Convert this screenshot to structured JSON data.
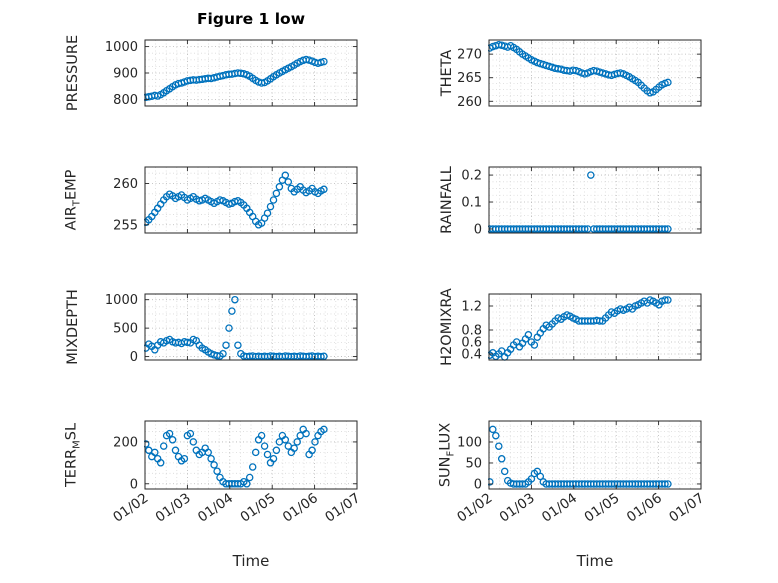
{
  "title": "Figure 1 low",
  "xlabel": "Time",
  "colors": {
    "marker": "#0072BD",
    "axis": "#262626",
    "grid_major": "#b5b5b5",
    "grid_minor": "#d9d9d9",
    "background": "#ffffff"
  },
  "x_axis": {
    "ticks": [
      2,
      3,
      4,
      5,
      6,
      7
    ],
    "tick_labels": [
      "01/02",
      "01/03",
      "01/04",
      "01/05",
      "01/06",
      "01/07"
    ],
    "lim": [
      2,
      7
    ]
  },
  "chart_data": [
    {
      "type": "scatter",
      "ylabel": "PRESSURE",
      "row": 0,
      "col": 0,
      "yticks": [
        800,
        900,
        1000
      ],
      "ylim": [
        775,
        1025
      ],
      "x_start": 2.02,
      "x_step": 0.07,
      "y": [
        808,
        810,
        812,
        815,
        813,
        818,
        825,
        833,
        840,
        848,
        855,
        860,
        862,
        866,
        870,
        872,
        874,
        873,
        875,
        876,
        878,
        880,
        879,
        882,
        885,
        888,
        890,
        893,
        895,
        896,
        898,
        900,
        899,
        897,
        893,
        888,
        880,
        872,
        866,
        862,
        864,
        870,
        878,
        886,
        893,
        900,
        906,
        912,
        918,
        924,
        930,
        937,
        943,
        948,
        951,
        949,
        945,
        940,
        937,
        940,
        943
      ]
    },
    {
      "type": "scatter",
      "ylabel": "THETA",
      "row": 0,
      "col": 1,
      "yticks": [
        260,
        265,
        270
      ],
      "ylim": [
        259,
        273
      ],
      "x_start": 2.02,
      "x_step": 0.07,
      "y": [
        271.3,
        271.6,
        271.8,
        272.0,
        271.9,
        271.7,
        271.5,
        271.8,
        271.4,
        271.0,
        270.5,
        270.0,
        269.6,
        269.2,
        268.8,
        268.5,
        268.2,
        268.0,
        267.8,
        267.6,
        267.4,
        267.2,
        267.0,
        266.9,
        266.8,
        266.6,
        266.5,
        266.4,
        266.6,
        266.5,
        266.3,
        266.0,
        265.8,
        266.0,
        266.3,
        266.5,
        266.4,
        266.2,
        266.0,
        265.8,
        265.6,
        265.5,
        265.7,
        265.9,
        266.0,
        265.8,
        265.5,
        265.2,
        264.8,
        264.4,
        264.0,
        263.4,
        262.8,
        262.2,
        261.8,
        262.0,
        262.5,
        263.0,
        263.5,
        263.8,
        264.0
      ]
    },
    {
      "type": "scatter",
      "ylabel": "AIR_TEMP",
      "row": 1,
      "col": 0,
      "yticks": [
        255,
        260
      ],
      "ylim": [
        254,
        262
      ],
      "x_start": 2.02,
      "x_step": 0.07,
      "y": [
        255.3,
        255.6,
        256.0,
        256.5,
        257.0,
        257.5,
        258.0,
        258.4,
        258.7,
        258.5,
        258.2,
        258.4,
        258.6,
        258.3,
        258.0,
        258.2,
        258.4,
        258.1,
        257.9,
        258.0,
        258.2,
        258.0,
        257.8,
        257.6,
        257.8,
        258.0,
        257.9,
        257.7,
        257.5,
        257.6,
        257.8,
        257.9,
        257.7,
        257.4,
        257.0,
        256.5,
        256.0,
        255.4,
        255.0,
        255.2,
        255.8,
        256.4,
        257.2,
        258.0,
        258.8,
        259.6,
        260.4,
        261.0,
        260.2,
        259.4,
        259.0,
        259.3,
        259.6,
        259.2,
        258.9,
        259.1,
        259.4,
        259.0,
        258.8,
        259.1,
        259.3
      ]
    },
    {
      "type": "scatter",
      "ylabel": "RAINFALL",
      "row": 1,
      "col": 1,
      "yticks": [
        0,
        0.1,
        0.2
      ],
      "ylim": [
        -0.015,
        0.23
      ],
      "x_start": 2.02,
      "x_step": 0.07,
      "y": [
        0,
        0,
        0,
        0,
        0,
        0,
        0,
        0,
        0,
        0,
        0,
        0,
        0,
        0,
        0,
        0,
        0,
        0,
        0,
        0,
        0,
        0,
        0,
        0,
        0,
        0,
        0,
        0,
        0,
        0,
        0,
        0,
        0,
        0,
        0.2,
        0,
        0,
        0,
        0,
        0,
        0,
        0,
        0,
        0,
        0,
        0,
        0,
        0,
        0,
        0,
        0,
        0,
        0,
        0,
        0,
        0,
        0,
        0,
        0,
        0,
        0
      ]
    },
    {
      "type": "scatter",
      "ylabel": "MIXDEPTH",
      "row": 2,
      "col": 0,
      "yticks": [
        0,
        500,
        1000
      ],
      "ylim": [
        -60,
        1100
      ],
      "x_start": 2.02,
      "x_step": 0.07,
      "y": [
        150,
        220,
        180,
        120,
        200,
        260,
        240,
        280,
        300,
        260,
        240,
        250,
        230,
        260,
        250,
        240,
        300,
        280,
        200,
        150,
        120,
        80,
        50,
        30,
        15,
        10,
        50,
        200,
        500,
        800,
        1000,
        200,
        50,
        10,
        0,
        5,
        10,
        0,
        5,
        0,
        5,
        0,
        10,
        5,
        0,
        5,
        0,
        10,
        5,
        0,
        5,
        0,
        10,
        5,
        0,
        5,
        10,
        0,
        5,
        0,
        5
      ]
    },
    {
      "type": "scatter",
      "ylabel": "H2OMIXRA",
      "row": 2,
      "col": 1,
      "yticks": [
        0.4,
        0.6,
        0.8,
        1.2
      ],
      "ylim": [
        0.3,
        1.4
      ],
      "x_start": 2.02,
      "x_step": 0.07,
      "y": [
        0.38,
        0.42,
        0.36,
        0.4,
        0.45,
        0.35,
        0.42,
        0.48,
        0.55,
        0.6,
        0.52,
        0.58,
        0.65,
        0.72,
        0.6,
        0.55,
        0.68,
        0.75,
        0.82,
        0.88,
        0.85,
        0.9,
        0.95,
        1.0,
        0.98,
        1.02,
        1.05,
        1.03,
        1.0,
        0.98,
        0.95,
        0.95,
        0.95,
        0.95,
        0.95,
        0.95,
        0.96,
        0.95,
        0.95,
        1.0,
        1.05,
        1.1,
        1.08,
        1.12,
        1.15,
        1.13,
        1.15,
        1.18,
        1.15,
        1.2,
        1.22,
        1.25,
        1.28,
        1.25,
        1.3,
        1.28,
        1.25,
        1.22,
        1.28,
        1.3,
        1.3
      ]
    },
    {
      "type": "scatter",
      "ylabel": "TERR_MSL",
      "row": 3,
      "col": 0,
      "yticks": [
        0,
        200
      ],
      "ylim": [
        -25,
        300
      ],
      "x_start": 2.02,
      "x_step": 0.07,
      "y": [
        190,
        160,
        130,
        150,
        120,
        100,
        180,
        230,
        240,
        210,
        160,
        130,
        110,
        120,
        230,
        240,
        200,
        160,
        140,
        150,
        170,
        150,
        120,
        90,
        60,
        30,
        10,
        0,
        0,
        0,
        0,
        0,
        0,
        10,
        0,
        30,
        80,
        150,
        210,
        230,
        180,
        140,
        100,
        120,
        160,
        200,
        230,
        210,
        180,
        150,
        170,
        200,
        230,
        260,
        240,
        140,
        160,
        200,
        230,
        250,
        260
      ]
    },
    {
      "type": "scatter",
      "ylabel": "SUN_FLUX",
      "row": 3,
      "col": 1,
      "yticks": [
        0,
        50,
        100
      ],
      "ylim": [
        -12,
        150
      ],
      "x_start": 2.02,
      "x_step": 0.07,
      "y": [
        5,
        130,
        115,
        90,
        60,
        30,
        8,
        2,
        0,
        0,
        0,
        0,
        0,
        5,
        12,
        25,
        30,
        18,
        5,
        0,
        0,
        0,
        0,
        0,
        0,
        0,
        0,
        0,
        0,
        0,
        0,
        0,
        0,
        0,
        0,
        0,
        0,
        0,
        0,
        0,
        0,
        0,
        0,
        0,
        0,
        0,
        0,
        0,
        0,
        0,
        0,
        0,
        0,
        0,
        0,
        0,
        0,
        0,
        0,
        0,
        0
      ]
    }
  ]
}
